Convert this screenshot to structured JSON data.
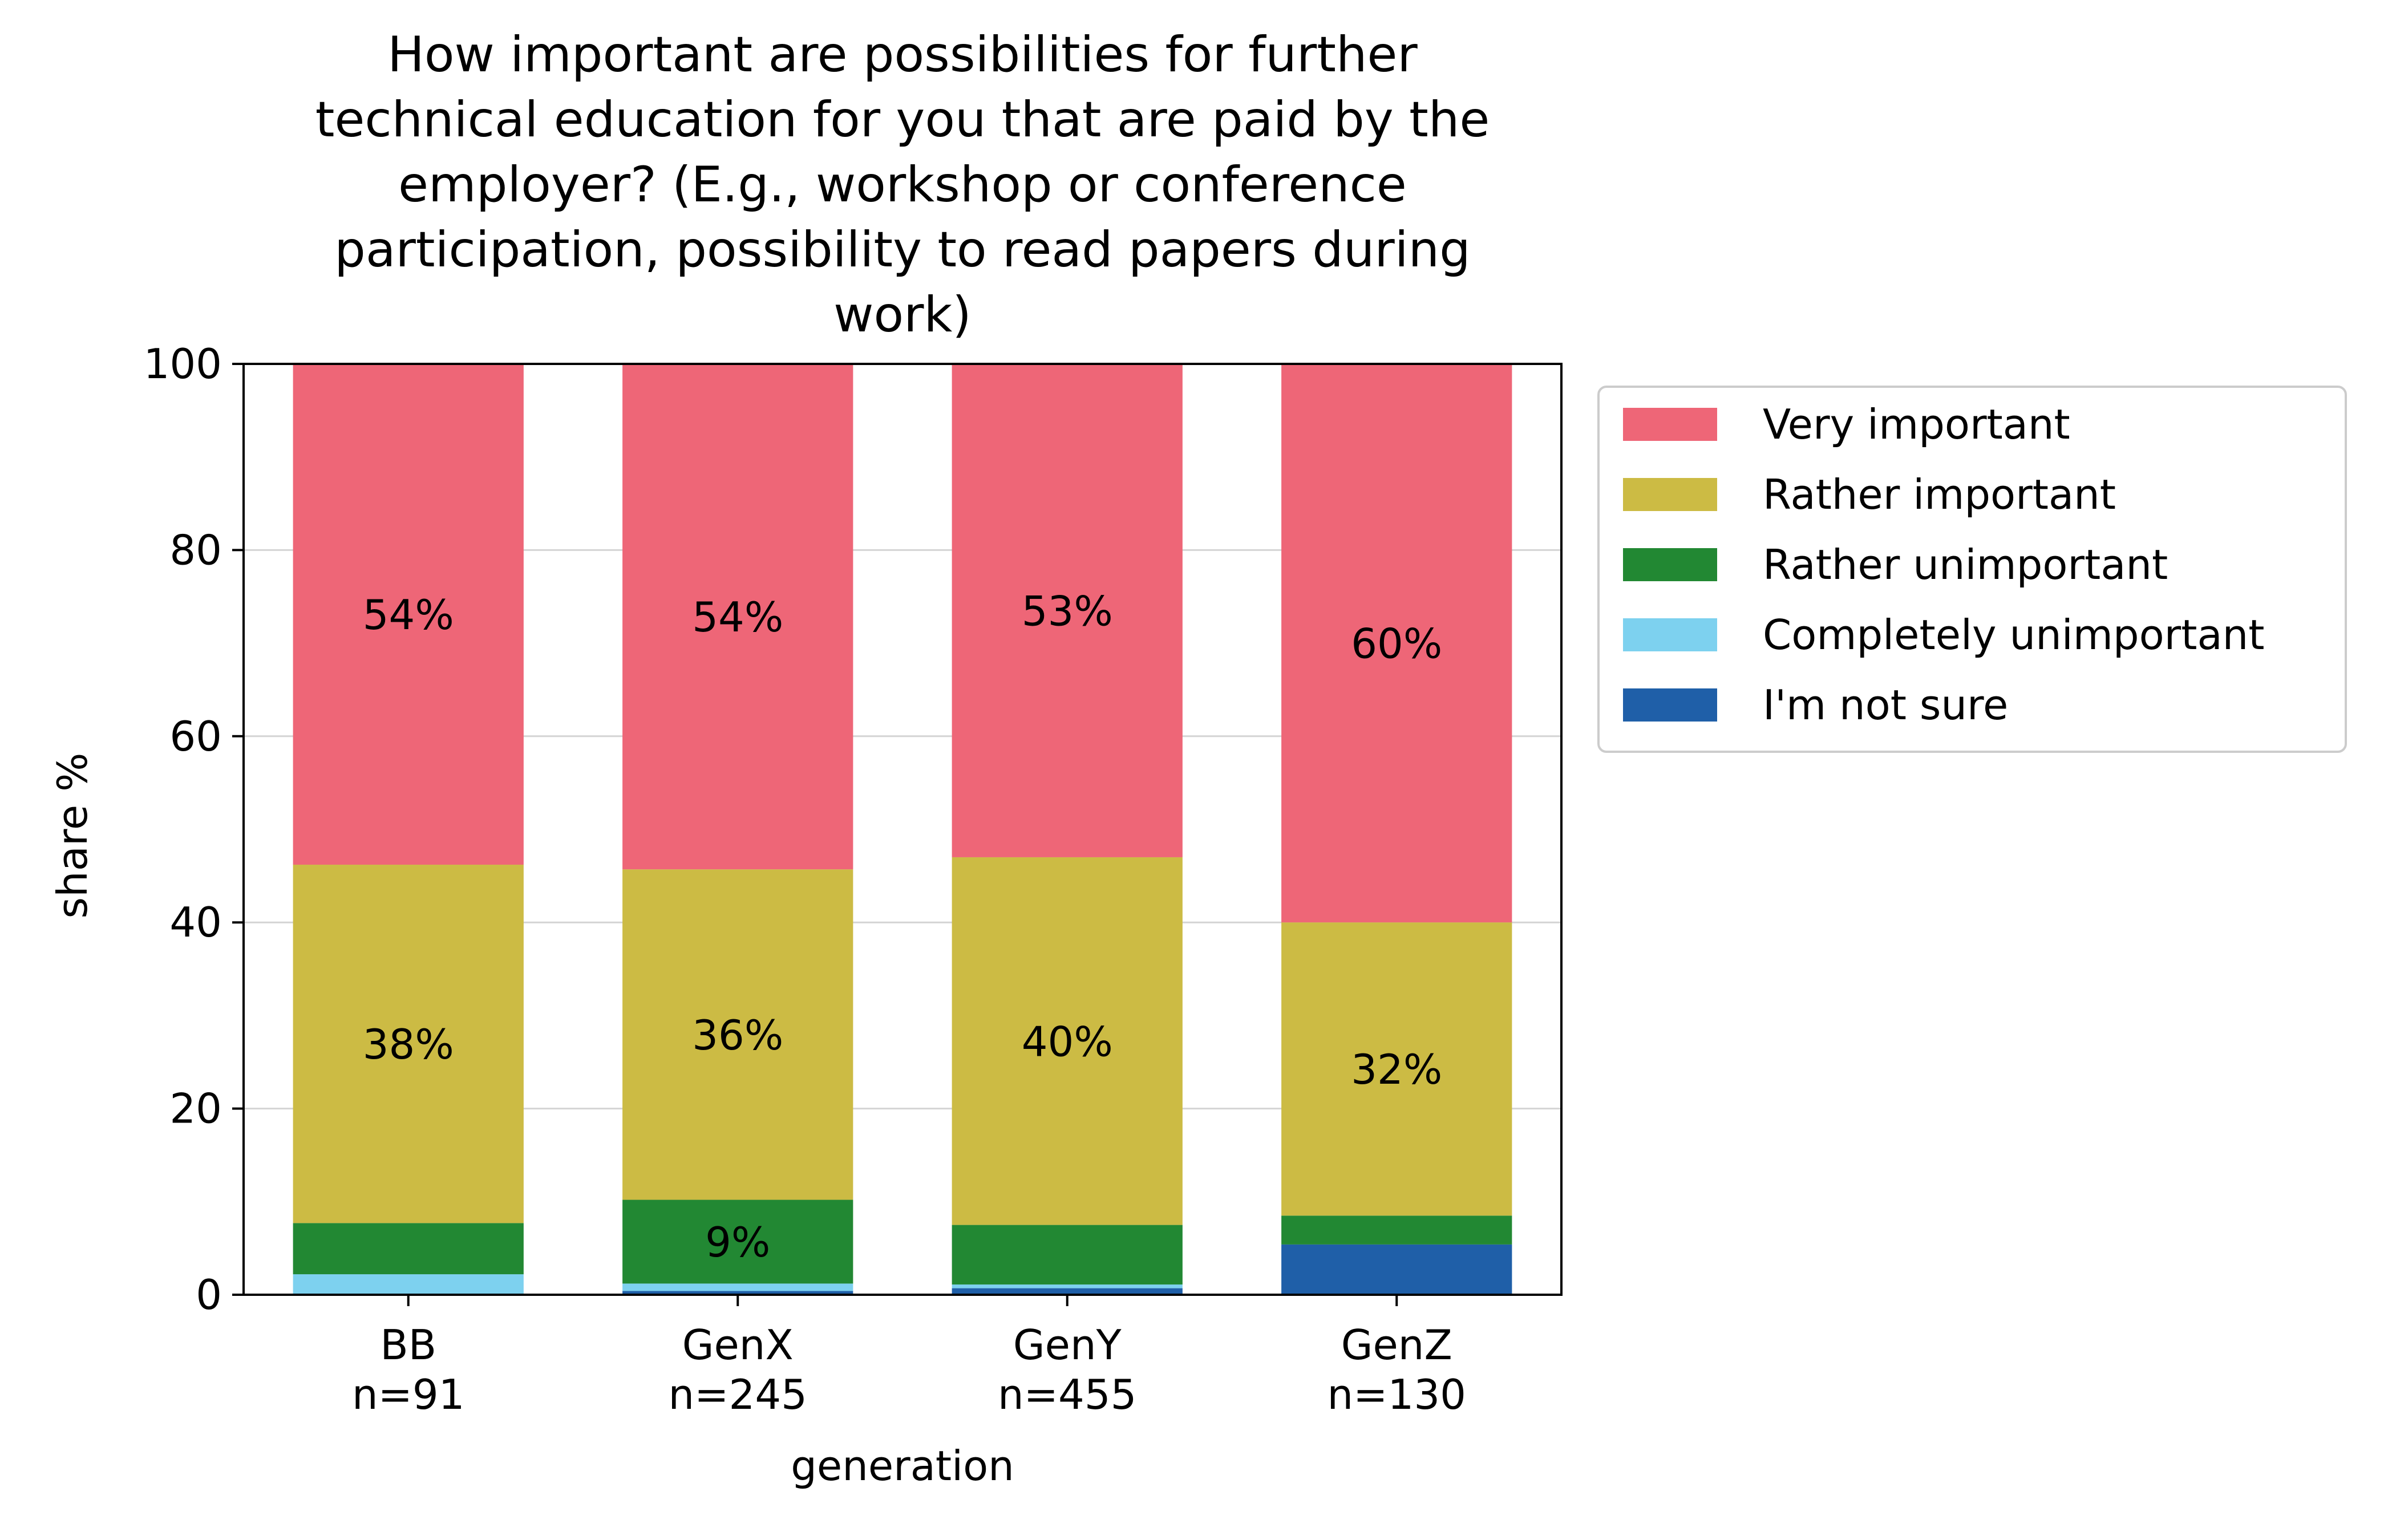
{
  "chart_data": {
    "type": "bar",
    "stacked": true,
    "title": "How important are possibilities for further technical education for you that are paid by the employer? (E.g., workshop or conference participation, possibility to read papers during work)",
    "title_lines": [
      "How important are possibilities for further",
      "technical education for you that are paid by the",
      "employer? (E.g., workshop or conference",
      "participation, possibility to read papers during",
      "work)"
    ],
    "xlabel": "generation",
    "ylabel": "share %",
    "ylim": [
      0,
      100
    ],
    "yticks": [
      "0",
      "20",
      "40",
      "60",
      "80",
      "100"
    ],
    "grid": "horizontal",
    "legend_position": "right",
    "categories": [
      {
        "name": "BB",
        "n": "n=91"
      },
      {
        "name": "GenX",
        "n": "n=245"
      },
      {
        "name": "GenY",
        "n": "n=455"
      },
      {
        "name": "GenZ",
        "n": "n=130"
      }
    ],
    "series": [
      {
        "name": "I'm not sure",
        "color": "#1f5fa8",
        "values": [
          0.0,
          0.4,
          0.7,
          5.4
        ],
        "labels": [
          "",
          "",
          "",
          ""
        ]
      },
      {
        "name": "Completely unimportant",
        "color": "#7dd1ef",
        "values": [
          2.2,
          0.8,
          0.4,
          0.0
        ],
        "labels": [
          "",
          "",
          "",
          ""
        ]
      },
      {
        "name": "Rather unimportant",
        "color": "#228833",
        "values": [
          5.5,
          9.0,
          6.4,
          3.1
        ],
        "labels": [
          "",
          "9%",
          "",
          ""
        ]
      },
      {
        "name": "Rather important",
        "color": "#ccbb44",
        "values": [
          38.5,
          35.5,
          39.5,
          31.5
        ],
        "labels": [
          "38%",
          "36%",
          "40%",
          "32%"
        ]
      },
      {
        "name": "Very important",
        "color": "#ee6677",
        "values": [
          53.8,
          54.3,
          53.0,
          60.0
        ],
        "labels": [
          "54%",
          "54%",
          "53%",
          "60%"
        ]
      }
    ],
    "legend_order": [
      "Very important",
      "Rather important",
      "Rather unimportant",
      "Completely unimportant",
      "I'm not sure"
    ]
  }
}
